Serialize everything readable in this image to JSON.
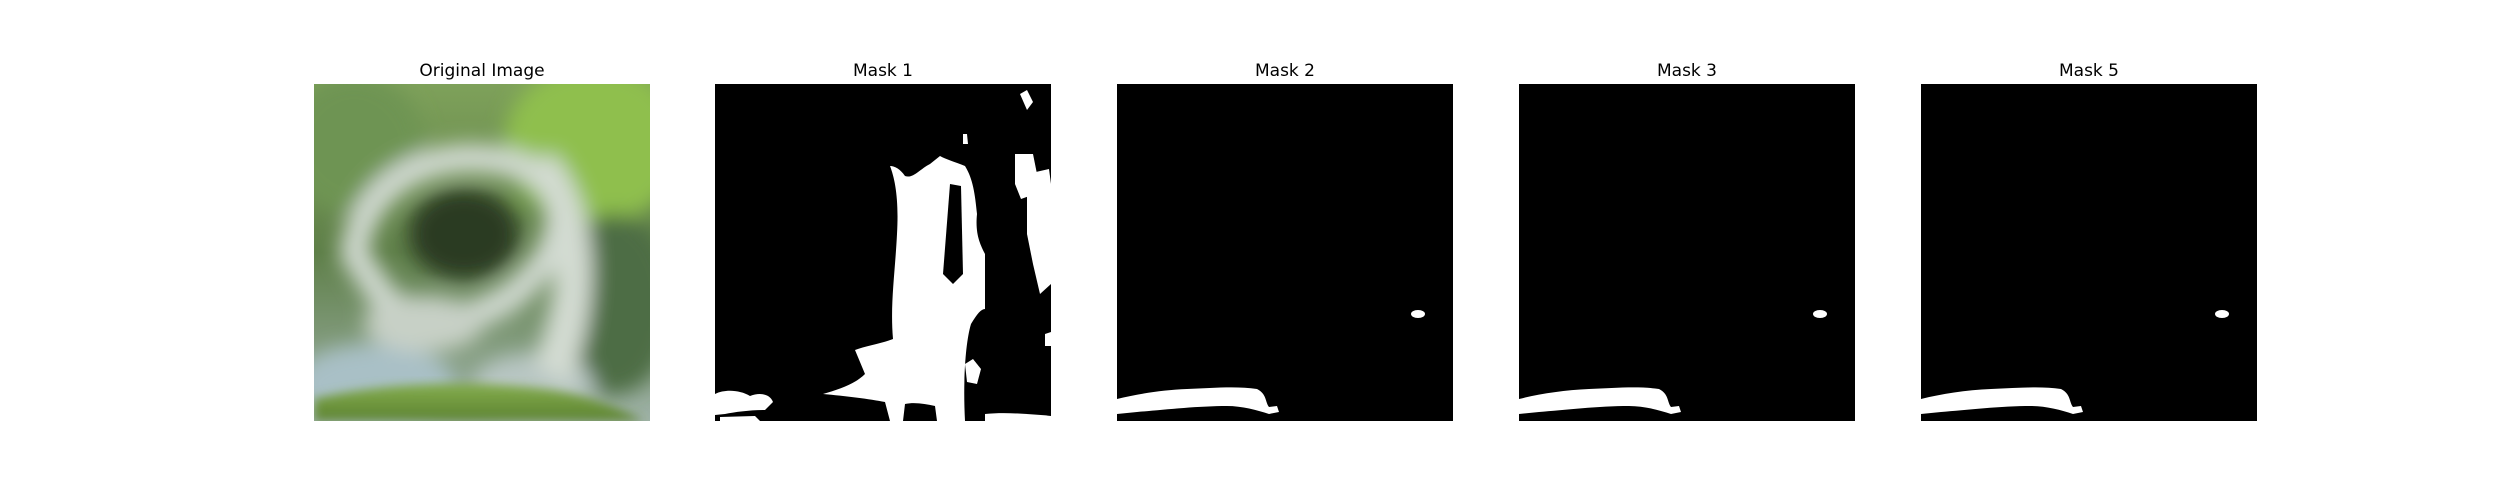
{
  "figure": {
    "panels": [
      {
        "title": "Original Image",
        "kind": "photo"
      },
      {
        "title": "Mask 1",
        "kind": "mask"
      },
      {
        "title": "Mask 2",
        "kind": "mask"
      },
      {
        "title": "Mask 3",
        "kind": "mask"
      },
      {
        "title": "Mask 5",
        "kind": "mask"
      }
    ]
  },
  "colors": {
    "mask_background": "#000000",
    "mask_foreground": "#ffffff",
    "leaf_green": "#6f9a3a",
    "pale_object": "#c9d1c8",
    "sky_blue": "#aebfc6"
  }
}
